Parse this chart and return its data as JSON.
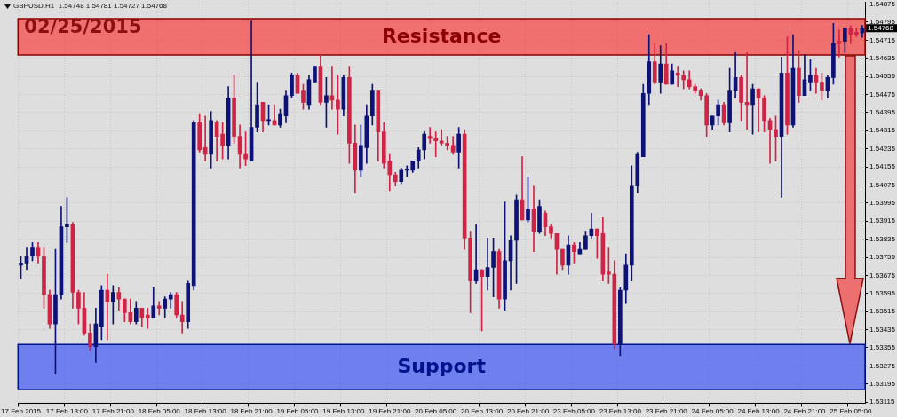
{
  "chart_data": {
    "type": "candlestick",
    "title": "02/25/2015",
    "annotations": [
      "GBPUSD.H1  1.54748 1.54781 1.54727 1.54768",
      "1.54768"
    ],
    "categories": [
      "17 Feb 2015",
      null,
      null,
      null,
      null,
      null,
      null,
      null,
      "17 Feb 13:00",
      null,
      null,
      null,
      null,
      null,
      null,
      null,
      "17 Feb 21:00",
      null,
      null,
      null,
      null,
      null,
      null,
      null,
      "18 Feb 05:00",
      null,
      null,
      null,
      null,
      null,
      null,
      null,
      "18 Feb 13:00",
      null,
      null,
      null,
      null,
      null,
      null,
      null,
      "18 Feb 21:00",
      null,
      null,
      null,
      null,
      null,
      null,
      null,
      "19 Feb 05:00",
      null,
      null,
      null,
      null,
      null,
      null,
      null,
      "19 Feb 13:00",
      null,
      null,
      null,
      null,
      null,
      null,
      null,
      "19 Feb 21:00",
      null,
      null,
      null,
      null,
      null,
      null,
      null,
      "20 Feb 05:00",
      null,
      null,
      null,
      null,
      null,
      null,
      null,
      "20 Feb 13:00",
      null,
      null,
      null,
      null,
      null,
      null,
      null,
      "20 Feb 21:00",
      null,
      null,
      null,
      null,
      null,
      null,
      null,
      "23 Feb 05:00",
      null,
      null,
      null,
      null,
      null,
      null,
      null,
      "23 Feb 13:00",
      null,
      null,
      null,
      null,
      null,
      null,
      null,
      "23 Feb 21:00",
      null,
      null,
      null,
      null,
      null,
      null,
      null,
      "24 Feb 05:00",
      null,
      null,
      null,
      null,
      null,
      null,
      null,
      "24 Feb 13:00",
      null,
      null,
      null,
      null,
      null,
      null,
      null,
      "24 Feb 21:00",
      null,
      null,
      null,
      null,
      null,
      null,
      null,
      "25 Feb 05:00",
      null,
      null
    ],
    "ohlc": [
      [
        1.5372,
        1.5376,
        1.5366,
        1.5373
      ],
      [
        1.5373,
        1.538,
        1.537,
        1.5376
      ],
      [
        1.5376,
        1.5382,
        1.5374,
        1.538
      ],
      [
        1.538,
        1.5382,
        1.5373,
        1.5376
      ],
      [
        1.5376,
        1.538,
        1.5353,
        1.5359
      ],
      [
        1.5359,
        1.5361,
        1.5344,
        1.5346
      ],
      [
        1.5346,
        1.5379,
        1.5324,
        1.5359
      ],
      [
        1.5359,
        1.5398,
        1.5357,
        1.5389
      ],
      [
        1.5389,
        1.5402,
        1.5382,
        1.539
      ],
      [
        1.539,
        1.5391,
        1.5353,
        1.536
      ],
      [
        1.536,
        1.5361,
        1.5346,
        1.5353
      ],
      [
        1.5353,
        1.536,
        1.5341,
        1.5342
      ],
      [
        1.5342,
        1.5346,
        1.5334,
        1.5336
      ],
      [
        1.5336,
        1.5353,
        1.5329,
        1.5346
      ],
      [
        1.5345,
        1.5363,
        1.5339,
        1.5361
      ],
      [
        1.5361,
        1.5368,
        1.5339,
        1.5356
      ],
      [
        1.5356,
        1.5363,
        1.5346,
        1.536
      ],
      [
        1.536,
        1.5362,
        1.5352,
        1.5357
      ],
      [
        1.5357,
        1.5357,
        1.5347,
        1.5351
      ],
      [
        1.5351,
        1.5357,
        1.5346,
        1.5347
      ],
      [
        1.5347,
        1.5356,
        1.5346,
        1.5353
      ],
      [
        1.5353,
        1.5353,
        1.5345,
        1.5349
      ],
      [
        1.535,
        1.5353,
        1.5344,
        1.5349
      ],
      [
        1.5349,
        1.5362,
        1.5349,
        1.5354
      ],
      [
        1.5354,
        1.5356,
        1.535,
        1.5353
      ],
      [
        1.5353,
        1.5358,
        1.5349,
        1.5357
      ],
      [
        1.5357,
        1.536,
        1.5353,
        1.5359
      ],
      [
        1.5359,
        1.536,
        1.5349,
        1.535
      ],
      [
        1.535,
        1.5356,
        1.5342,
        1.5347
      ],
      [
        1.5347,
        1.5365,
        1.5344,
        1.5364
      ],
      [
        1.5363,
        1.5436,
        1.5361,
        1.5435
      ],
      [
        1.5435,
        1.5439,
        1.5422,
        1.5423
      ],
      [
        1.5424,
        1.5438,
        1.5418,
        1.5421
      ],
      [
        1.5421,
        1.544,
        1.5415,
        1.5436
      ],
      [
        1.5435,
        1.5436,
        1.5418,
        1.5429
      ],
      [
        1.543,
        1.5435,
        1.5419,
        1.5425
      ],
      [
        1.5425,
        1.5451,
        1.5419,
        1.5446
      ],
      [
        1.5446,
        1.5456,
        1.5426,
        1.5429
      ],
      [
        1.5429,
        1.5434,
        1.5415,
        1.5421
      ],
      [
        1.5421,
        1.5431,
        1.5416,
        1.5419
      ],
      [
        1.5418,
        1.548,
        1.5418,
        1.5433
      ],
      [
        1.5433,
        1.5453,
        1.5431,
        1.5443
      ],
      [
        1.5444,
        1.5444,
        1.5431,
        1.5436
      ],
      [
        1.5436,
        1.5443,
        1.5434,
        1.5436
      ],
      [
        1.5436,
        1.5443,
        1.5434,
        1.5434
      ],
      [
        1.5434,
        1.5441,
        1.5433,
        1.5439
      ],
      [
        1.5438,
        1.5449,
        1.5435,
        1.5447
      ],
      [
        1.5447,
        1.5457,
        1.5446,
        1.5456
      ],
      [
        1.5456,
        1.5457,
        1.5448,
        1.5448
      ],
      [
        1.5449,
        1.5452,
        1.5441,
        1.5444
      ],
      [
        1.5443,
        1.5456,
        1.5441,
        1.5454
      ],
      [
        1.5453,
        1.546,
        1.5453,
        1.546
      ],
      [
        1.546,
        1.5465,
        1.5443,
        1.5444
      ],
      [
        1.5444,
        1.5455,
        1.5433,
        1.5447
      ],
      [
        1.5447,
        1.546,
        1.5441,
        1.5445
      ],
      [
        1.5445,
        1.5456,
        1.543,
        1.5441
      ],
      [
        1.5441,
        1.5456,
        1.5438,
        1.5455
      ],
      [
        1.5455,
        1.546,
        1.5417,
        1.5426
      ],
      [
        1.5426,
        1.5434,
        1.5404,
        1.5414
      ],
      [
        1.5414,
        1.5434,
        1.5411,
        1.5425
      ],
      [
        1.5424,
        1.5443,
        1.5417,
        1.5438
      ],
      [
        1.5438,
        1.5452,
        1.5434,
        1.5449
      ],
      [
        1.5449,
        1.5449,
        1.5418,
        1.5431
      ],
      [
        1.5431,
        1.5435,
        1.5415,
        1.5417
      ],
      [
        1.5418,
        1.5421,
        1.5405,
        1.5412
      ],
      [
        1.5412,
        1.5413,
        1.5407,
        1.5409
      ],
      [
        1.5409,
        1.5415,
        1.5408,
        1.5414
      ],
      [
        1.5414,
        1.5416,
        1.5411,
        1.5414
      ],
      [
        1.5414,
        1.5418,
        1.5413,
        1.5418
      ],
      [
        1.5418,
        1.5424,
        1.5415,
        1.5423
      ],
      [
        1.5423,
        1.5431,
        1.5419,
        1.543
      ],
      [
        1.5429,
        1.5433,
        1.5426,
        1.5428
      ],
      [
        1.5428,
        1.5431,
        1.542,
        1.5427
      ],
      [
        1.5427,
        1.5432,
        1.5425,
        1.5426
      ],
      [
        1.5426,
        1.5429,
        1.5423,
        1.5425
      ],
      [
        1.5425,
        1.5429,
        1.5421,
        1.5422
      ],
      [
        1.5422,
        1.5433,
        1.5415,
        1.543
      ],
      [
        1.543,
        1.5432,
        1.5379,
        1.5384
      ],
      [
        1.5384,
        1.5387,
        1.5351,
        1.5365
      ],
      [
        1.5365,
        1.539,
        1.5364,
        1.537
      ],
      [
        1.537,
        1.537,
        1.5343,
        1.5367
      ],
      [
        1.5367,
        1.5384,
        1.5361,
        1.5371
      ],
      [
        1.5371,
        1.5384,
        1.5358,
        1.5378
      ],
      [
        1.5378,
        1.5379,
        1.5353,
        1.5357
      ],
      [
        1.5357,
        1.54,
        1.5352,
        1.5374
      ],
      [
        1.5374,
        1.5385,
        1.5361,
        1.5383
      ],
      [
        1.5383,
        1.5403,
        1.5364,
        1.5401
      ],
      [
        1.5401,
        1.542,
        1.5392,
        1.5392
      ],
      [
        1.5392,
        1.5411,
        1.5391,
        1.5397
      ],
      [
        1.5397,
        1.5407,
        1.5378,
        1.5387
      ],
      [
        1.5387,
        1.5401,
        1.5386,
        1.5398
      ],
      [
        1.5395,
        1.5396,
        1.5385,
        1.5389
      ],
      [
        1.5389,
        1.539,
        1.5384,
        1.5386
      ],
      [
        1.5386,
        1.5386,
        1.5368,
        1.5379
      ],
      [
        1.5379,
        1.5379,
        1.537,
        1.5372
      ],
      [
        1.5372,
        1.5385,
        1.5368,
        1.5381
      ],
      [
        1.5381,
        1.5382,
        1.5373,
        1.5378
      ],
      [
        1.5377,
        1.5382,
        1.5377,
        1.5379
      ],
      [
        1.5379,
        1.5387,
        1.5379,
        1.5385
      ],
      [
        1.5385,
        1.5395,
        1.5384,
        1.5388
      ],
      [
        1.5388,
        1.5388,
        1.5375,
        1.5385
      ],
      [
        1.5386,
        1.5393,
        1.5365,
        1.5368
      ],
      [
        1.5369,
        1.538,
        1.5364,
        1.5368
      ],
      [
        1.5368,
        1.5374,
        1.5335,
        1.5337
      ],
      [
        1.5337,
        1.5362,
        1.5332,
        1.5361
      ],
      [
        1.5361,
        1.5377,
        1.5355,
        1.5372
      ],
      [
        1.5372,
        1.5416,
        1.5365,
        1.5407
      ],
      [
        1.5407,
        1.5422,
        1.5404,
        1.5421
      ],
      [
        1.542,
        1.5452,
        1.542,
        1.5448
      ],
      [
        1.5448,
        1.5474,
        1.5443,
        1.5462
      ],
      [
        1.5462,
        1.547,
        1.5452,
        1.5453
      ],
      [
        1.5453,
        1.5469,
        1.5448,
        1.5461
      ],
      [
        1.5461,
        1.547,
        1.5452,
        1.5452
      ],
      [
        1.5452,
        1.5461,
        1.5452,
        1.5458
      ],
      [
        1.5457,
        1.546,
        1.5451,
        1.5456
      ],
      [
        1.5456,
        1.5458,
        1.545,
        1.5454
      ],
      [
        1.5454,
        1.5458,
        1.545,
        1.5451
      ],
      [
        1.5451,
        1.5452,
        1.5448,
        1.5449
      ],
      [
        1.5449,
        1.545,
        1.5445,
        1.5447
      ],
      [
        1.5447,
        1.5448,
        1.5429,
        1.5434
      ],
      [
        1.5434,
        1.5438,
        1.5432,
        1.5438
      ],
      [
        1.5438,
        1.5445,
        1.5434,
        1.5443
      ],
      [
        1.5443,
        1.5444,
        1.5434,
        1.5435
      ],
      [
        1.5435,
        1.5459,
        1.5431,
        1.5449
      ],
      [
        1.5449,
        1.5466,
        1.5446,
        1.5455
      ],
      [
        1.5455,
        1.5456,
        1.5436,
        1.5444
      ],
      [
        1.5444,
        1.5466,
        1.5432,
        1.5443
      ],
      [
        1.5443,
        1.5452,
        1.543,
        1.545
      ],
      [
        1.545,
        1.545,
        1.5431,
        1.5446
      ],
      [
        1.5446,
        1.5447,
        1.5431,
        1.5436
      ],
      [
        1.5436,
        1.5437,
        1.5417,
        1.5432
      ],
      [
        1.5432,
        1.5438,
        1.5418,
        1.5429
      ],
      [
        1.5429,
        1.5464,
        1.5402,
        1.5457
      ],
      [
        1.5457,
        1.5473,
        1.543,
        1.5434
      ],
      [
        1.5434,
        1.5474,
        1.5433,
        1.5459
      ],
      [
        1.5459,
        1.5467,
        1.5444,
        1.5447
      ],
      [
        1.5447,
        1.5465,
        1.5447,
        1.5454
      ],
      [
        1.5453,
        1.5463,
        1.5449,
        1.5456
      ],
      [
        1.5456,
        1.5459,
        1.5448,
        1.5453
      ],
      [
        1.5453,
        1.5457,
        1.5445,
        1.5449
      ],
      [
        1.5449,
        1.5456,
        1.5446,
        1.5455
      ],
      [
        1.5455,
        1.5479,
        1.5452,
        1.547
      ],
      [
        1.5471,
        1.5476,
        1.5464,
        1.547
      ],
      [
        1.5471,
        1.5477,
        1.5466,
        1.5477
      ],
      [
        1.5477,
        1.5478,
        1.547,
        1.5474
      ],
      [
        1.5475,
        1.5477,
        1.5473,
        1.5474
      ],
      [
        1.54748,
        1.54781,
        1.54727,
        1.54768
      ]
    ],
    "colors": [
      "#0d1277",
      "#0d1277",
      "#0d1277",
      "#cf2445",
      "#cf2445",
      "#cf2445",
      "#0d1277",
      "#0d1277",
      "#0d1277",
      "#cf2445",
      "#cf2445",
      "#cf2445",
      "#cf2445",
      "#0d1277",
      "#0d1277",
      "#cf2445",
      "#0d1277",
      "#cf2445",
      "#cf2445",
      "#cf2445",
      "#0d1277",
      "#cf2445",
      "#cf2445",
      "#0d1277",
      "#cf2445",
      "#0d1277",
      "#0d1277",
      "#cf2445",
      "#cf2445",
      "#0d1277",
      "#0d1277",
      "#cf2445",
      "#cf2445",
      "#0d1277",
      "#cf2445",
      "#cf2445",
      "#0d1277",
      "#cf2445",
      "#cf2445",
      "#cf2445",
      "#0d1277",
      "#0d1277",
      "#cf2445",
      "#0d1277",
      "#cf2445",
      "#0d1277",
      "#0d1277",
      "#0d1277",
      "#cf2445",
      "#cf2445",
      "#0d1277",
      "#0d1277",
      "#cf2445",
      "#0d1277",
      "#cf2445",
      "#cf2445",
      "#0d1277",
      "#cf2445",
      "#cf2445",
      "#0d1277",
      "#0d1277",
      "#0d1277",
      "#cf2445",
      "#cf2445",
      "#cf2445",
      "#cf2445",
      "#0d1277",
      "#0d1277",
      "#0d1277",
      "#0d1277",
      "#0d1277",
      "#cf2445",
      "#cf2445",
      "#cf2445",
      "#cf2445",
      "#cf2445",
      "#0d1277",
      "#cf2445",
      "#cf2445",
      "#0d1277",
      "#cf2445",
      "#0d1277",
      "#0d1277",
      "#cf2445",
      "#0d1277",
      "#0d1277",
      "#0d1277",
      "#cf2445",
      "#0d1277",
      "#cf2445",
      "#0d1277",
      "#cf2445",
      "#cf2445",
      "#cf2445",
      "#cf2445",
      "#0d1277",
      "#cf2445",
      "#0d1277",
      "#0d1277",
      "#0d1277",
      "#cf2445",
      "#cf2445",
      "#cf2445",
      "#cf2445",
      "#0d1277",
      "#0d1277",
      "#0d1277",
      "#0d1277",
      "#0d1277",
      "#0d1277",
      "#cf2445",
      "#0d1277",
      "#cf2445",
      "#0d1277",
      "#cf2445",
      "#cf2445",
      "#cf2445",
      "#cf2445",
      "#cf2445",
      "#cf2445",
      "#0d1277",
      "#0d1277",
      "#cf2445",
      "#0d1277",
      "#0d1277",
      "#cf2445",
      "#cf2445",
      "#0d1277",
      "#cf2445",
      "#cf2445",
      "#cf2445",
      "#cf2445",
      "#0d1277",
      "#cf2445",
      "#0d1277",
      "#cf2445",
      "#0d1277",
      "#0d1277",
      "#cf2445",
      "#cf2445",
      "#0d1277",
      "#0d1277",
      "#cf2445",
      "#0d1277",
      "#cf2445",
      "#cf2445",
      "#0d1277"
    ],
    "ylim": [
      1.5311,
      1.54885
    ],
    "yticks": [
      1.53115,
      1.53195,
      1.53275,
      1.53355,
      1.53435,
      1.53515,
      1.53595,
      1.53675,
      1.53755,
      1.53835,
      1.53915,
      1.53995,
      1.54075,
      1.54155,
      1.54235,
      1.54315,
      1.54395,
      1.54475,
      1.54555,
      1.54635,
      1.54715,
      1.54795,
      1.54875
    ],
    "grid": true,
    "bands": [
      {
        "axis": "y",
        "from": 1.5465,
        "to": 1.5481,
        "label": "Resistance",
        "color": "#f07070"
      },
      {
        "axis": "y",
        "from": 1.5317,
        "to": 1.5337,
        "label": "Support",
        "color": "#6f7fee"
      }
    ]
  }
}
